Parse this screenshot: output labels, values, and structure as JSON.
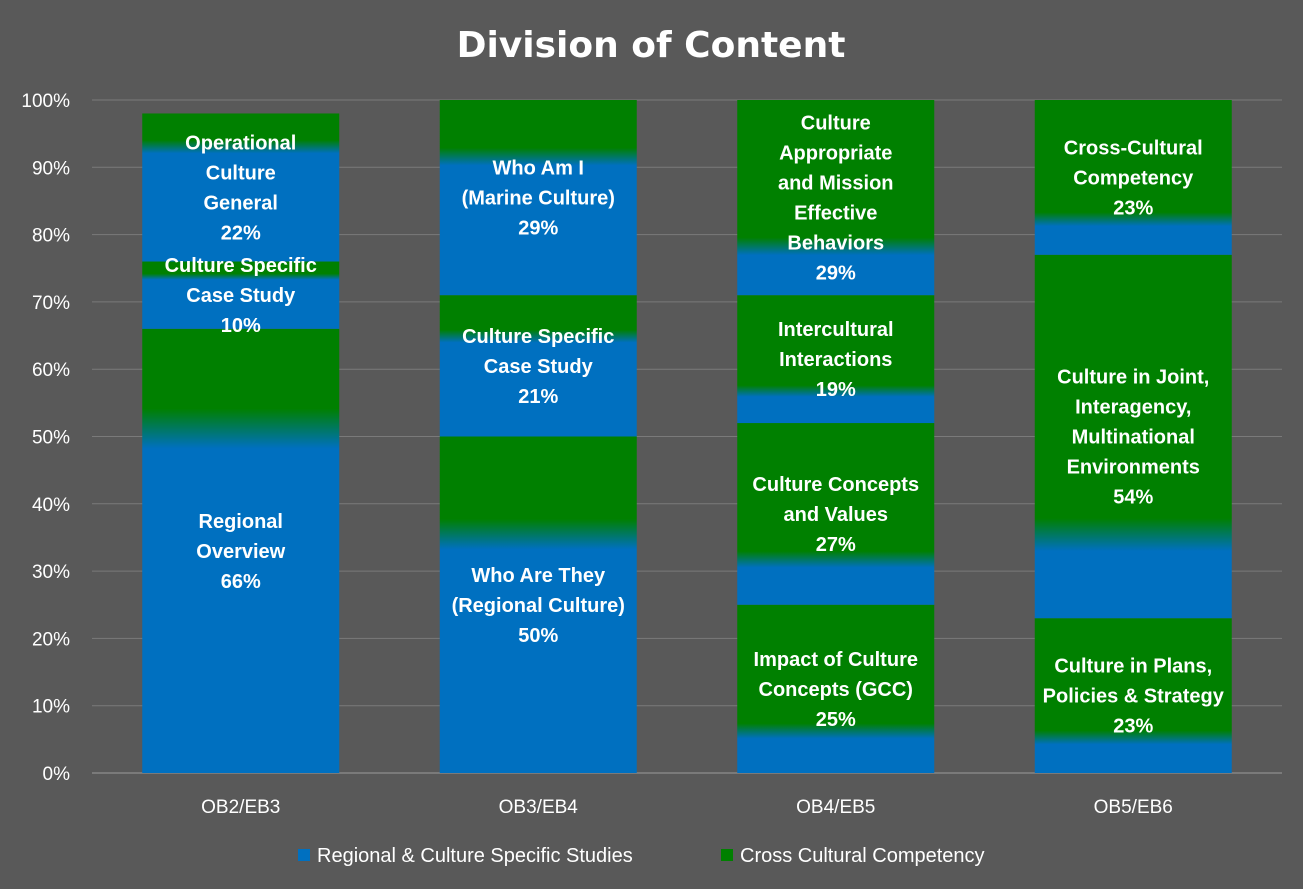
{
  "colors": {
    "background": "#595959",
    "regional": "#0070c0",
    "cross": "#008000",
    "grid": "#7a7a7a",
    "text": "#ffffff"
  },
  "chart_data": {
    "type": "bar",
    "stacked": true,
    "title": "Division of Content",
    "xlabel": "",
    "ylabel": "",
    "ylim": [
      0,
      100
    ],
    "yticks": [
      "0%",
      "10%",
      "20%",
      "30%",
      "40%",
      "50%",
      "60%",
      "70%",
      "80%",
      "90%",
      "100%"
    ],
    "grid": true,
    "legend_position": "bottom",
    "categories": [
      "OB2/EB3",
      "OB3/EB4",
      "OB4/EB5",
      "OB5/EB6"
    ],
    "series": [
      {
        "name": "Regional & Culture Specific Studies",
        "color": "#0070c0"
      },
      {
        "name": "Cross Cultural Competency",
        "color": "#008000"
      }
    ],
    "stacks": [
      [
        {
          "label": [
            "Regional",
            "Overview"
          ],
          "value": 66,
          "display": "66%",
          "series": "Regional & Culture Specific Studies"
        },
        {
          "label": [
            "Culture Specific",
            "Case Study"
          ],
          "value": 10,
          "display": "10%",
          "series": "Regional & Culture Specific Studies"
        },
        {
          "label": [
            "Operational",
            "Culture",
            "General"
          ],
          "value": 22,
          "display": "22%",
          "series": "Cross Cultural Competency"
        }
      ],
      [
        {
          "label": [
            "Who Are They",
            "(Regional Culture)"
          ],
          "value": 50,
          "display": "50%",
          "series": "Regional & Culture Specific Studies"
        },
        {
          "label": [
            "Culture Specific",
            "Case Study"
          ],
          "value": 21,
          "display": "21%",
          "series": "Regional & Culture Specific Studies"
        },
        {
          "label": [
            "Who Am I",
            "(Marine Culture)"
          ],
          "value": 29,
          "display": "29%",
          "series": "Cross Cultural Competency"
        }
      ],
      [
        {
          "label": [
            "Impact of Culture",
            "Concepts (GCC)"
          ],
          "value": 25,
          "display": "25%",
          "series": "Regional & Culture Specific Studies"
        },
        {
          "label": [
            "Culture Concepts",
            "and Values"
          ],
          "value": 27,
          "display": "27%",
          "series": "Cross Cultural Competency"
        },
        {
          "label": [
            "Intercultural",
            "Interactions"
          ],
          "value": 19,
          "display": "19%",
          "series": "Cross Cultural Competency"
        },
        {
          "label": [
            "Culture",
            "Appropriate",
            "and Mission",
            "Effective",
            "Behaviors"
          ],
          "value": 29,
          "display": "29%",
          "series": "Cross Cultural Competency"
        }
      ],
      [
        {
          "label": [
            "Culture in Plans,",
            "Policies & Strategy"
          ],
          "value": 23,
          "display": "23%",
          "series": "Regional & Culture Specific Studies"
        },
        {
          "label": [
            "Culture in Joint,",
            "Interagency,",
            "Multinational",
            "Environments"
          ],
          "value": 54,
          "display": "54%",
          "series": "Cross Cultural Competency"
        },
        {
          "label": [
            "Cross-Cultural",
            "Competency"
          ],
          "value": 23,
          "display": "23%",
          "series": "Cross Cultural Competency"
        }
      ]
    ]
  }
}
